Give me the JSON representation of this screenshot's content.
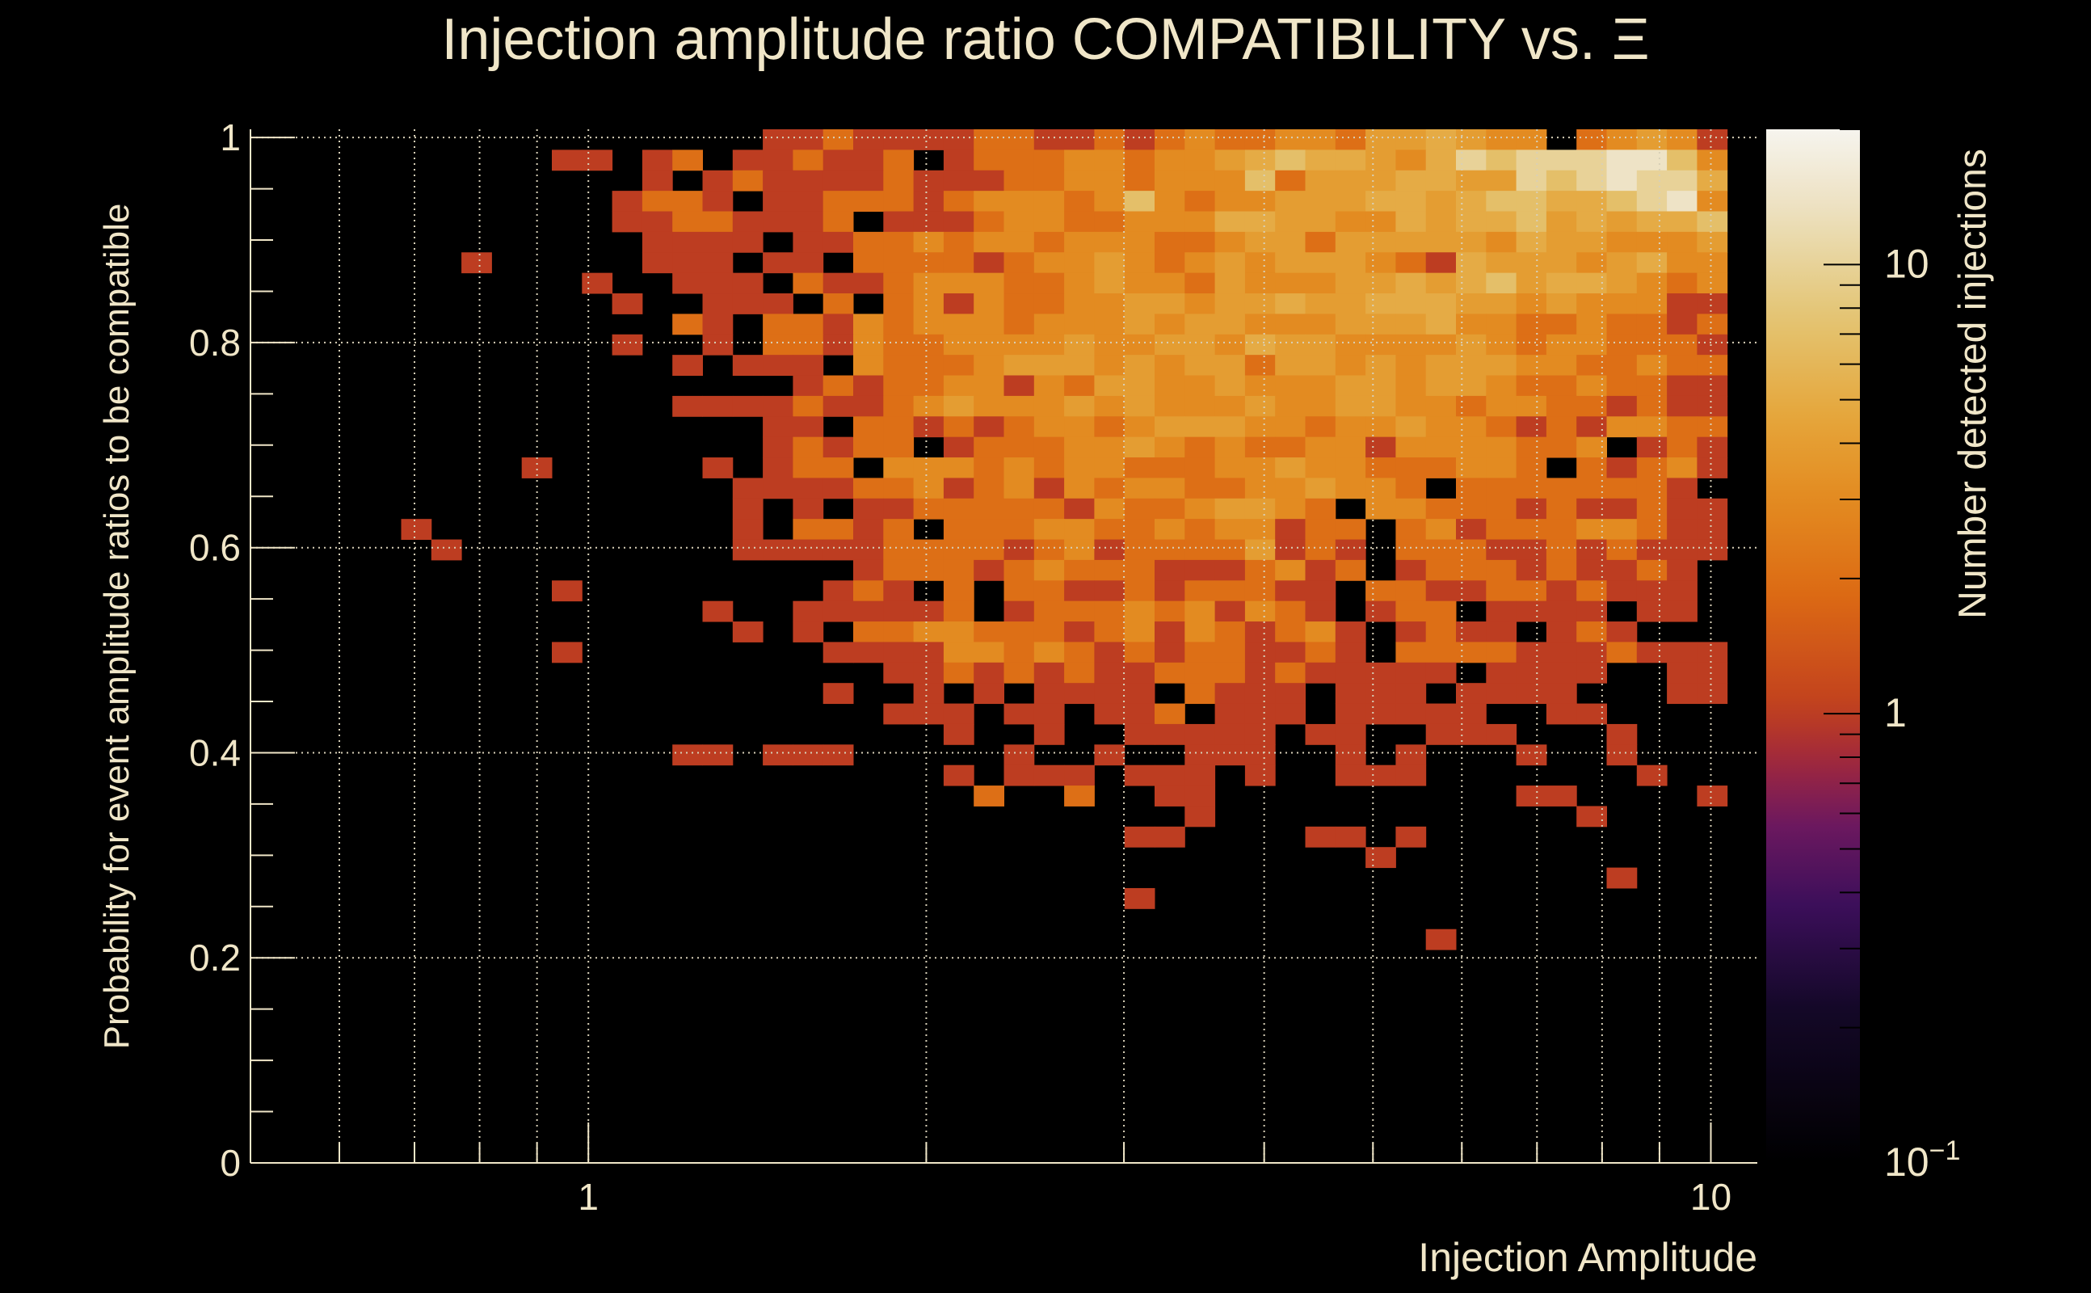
{
  "chart_data": {
    "type": "heatmap",
    "title": "Injection amplitude ratio COMPATIBILITY vs. Ξ",
    "xlabel": "Injection Amplitude",
    "ylabel": "Probability for event amplitude ratios to be compatible",
    "zlabel": "Number detected injections",
    "x_scale": "log",
    "xlim": [
      0.5,
      11.0
    ],
    "ylim": [
      0,
      1.008
    ],
    "zlim": [
      0.1,
      20
    ],
    "z_scale": "log",
    "x_bins": 50,
    "y_bin_width": 0.02,
    "y_bin_top": 1.008,
    "x_tick_labels": [
      {
        "value": 1,
        "label": "1"
      },
      {
        "value": 10,
        "label": "10"
      }
    ],
    "y_tick_labels": [
      {
        "value": 0,
        "label": "0"
      },
      {
        "value": 0.2,
        "label": "0.2"
      },
      {
        "value": 0.4,
        "label": "0.4"
      },
      {
        "value": 0.6,
        "label": "0.6"
      },
      {
        "value": 0.8,
        "label": "0.8"
      },
      {
        "value": 1,
        "label": "1"
      }
    ],
    "z_tick_labels": [
      {
        "value": 0.1,
        "label": "10",
        "exp": "−1"
      },
      {
        "value": 1,
        "label": "1",
        "exp": ""
      },
      {
        "value": 10,
        "label": "10",
        "exp": ""
      }
    ],
    "grid": true,
    "level_counts": [
      0,
      1,
      2,
      3,
      4,
      5,
      7,
      10,
      14,
      18
    ],
    "rows_top_to_bottom": [
      "00000000000000000112111122112123223324454330234310",
      "00000000001101201121120122233233456554357677788630",
      "00000000000001012111121112233233362444554476787750",
      "00000000000012210112221233323632334445545665567830",
      "00000000000011221112011123322333554433545564545560",
      "00000000000001111011223233233322344244444354433340",
      "00000001000001110110222212334323434443215444345330",
      "00000000000100111021123332234332433344545645543230",
      "00000000000010011102023132233443445445554434333110",
      "00000000000000210221323332333434433344453322322120",
      "00000000000010010221322333343344354433334323322210",
      "00000000000000101110322234443434424434344433223220",
      "00000000000000000012122331324433433344344322322110",
      "00000000000000111121123433343433343344332332212110",
      "00000000000000000110221212332344433233433212133220",
      "00000000000000000121220122233432322331333322301210",
      "00000000010000010122033323233222334332223320212310",
      "00000000000000001111223123132332233433202222222100",
      "00000000000000001010112222213223443203322212112110",
      "00000100000000001022120222332232331220231222332110",
      "00000010000000001111122221231222241210222112121110",
      "00000000000000000000122212322211123120122212112100",
      "00000000001000000001210202211212221102211221211100",
      "00000000000000010011111201222323132101220111101100",
      "00000000000000001010223322212313212310121101210000",
      "00000000001000000001111332321212211210222211121110",
      "00000000000000000000011212121122212111110111100110",
      "00000000000000000001001010111102111011101111000110",
      "00000000000000000000011101101120111011111001100000",
      "00000000000000000000000100100111110110011100010000",
      "00000000000000110111000001001001110010100010010000",
      "00000000000000000000000101110111010011100000001000",
      "00000000000000000000000020020011000000000011000010",
      "00000000000000000000000000000001000000000000100000",
      "00000000000000000000000000000110000110100000000000",
      "00000000000000000000000000000000000001000000000000",
      "00000000000000000000000000000000000000000000010000",
      "00000000000000000000000000000100000000000000000000",
      "00000000000000000000000000000000000000000000000000",
      "00000000000000000000000000000000000000010000000000"
    ],
    "colors": {
      "background": "#000000",
      "text": "#f0e6c8",
      "grid": "#d8d0b8"
    }
  }
}
